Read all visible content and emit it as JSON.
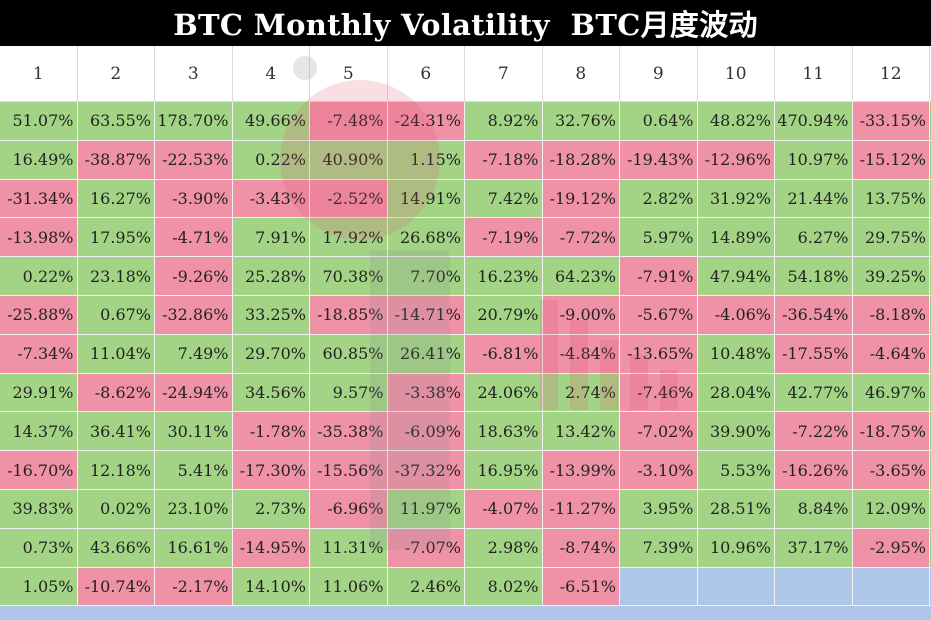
{
  "title": "BTC Monthly Volatility  BTC月度波动",
  "colors": {
    "up": "#a3d486",
    "down": "#ef92a7",
    "empty": "#aec6e8",
    "header_bg": "#ffffff",
    "title_bg": "#000000"
  },
  "chart_data": {
    "type": "table",
    "title": "BTC Monthly Volatility  BTC月度波动",
    "columns": [
      "1",
      "2",
      "3",
      "4",
      "5",
      "6",
      "7",
      "8",
      "9",
      "10",
      "11",
      "12"
    ],
    "rows": [
      [
        "51.07%",
        "63.55%",
        "178.70%",
        "49.66%",
        "-7.48%",
        "-24.31%",
        "8.92%",
        "32.76%",
        "0.64%",
        "48.82%",
        "470.94%",
        "-33.15%"
      ],
      [
        "16.49%",
        "-38.87%",
        "-22.53%",
        "0.22%",
        "40.90%",
        "1.15%",
        "-7.18%",
        "-18.28%",
        "-19.43%",
        "-12.96%",
        "10.97%",
        "-15.12%"
      ],
      [
        "-31.34%",
        "16.27%",
        "-3.90%",
        "-3.43%",
        "-2.52%",
        "14.91%",
        "7.42%",
        "-19.12%",
        "2.82%",
        "31.92%",
        "21.44%",
        "13.75%"
      ],
      [
        "-13.98%",
        "17.95%",
        "-4.71%",
        "7.91%",
        "17.92%",
        "26.68%",
        "-7.19%",
        "-7.72%",
        "5.97%",
        "14.89%",
        "6.27%",
        "29.75%"
      ],
      [
        "0.22%",
        "23.18%",
        "-9.26%",
        "25.28%",
        "70.38%",
        "7.70%",
        "16.23%",
        "64.23%",
        "-7.91%",
        "47.94%",
        "54.18%",
        "39.25%"
      ],
      [
        "-25.88%",
        "0.67%",
        "-32.86%",
        "33.25%",
        "-18.85%",
        "-14.71%",
        "20.79%",
        "-9.00%",
        "-5.67%",
        "-4.06%",
        "-36.54%",
        "-8.18%"
      ],
      [
        "-7.34%",
        "11.04%",
        "7.49%",
        "29.70%",
        "60.85%",
        "26.41%",
        "-6.81%",
        "-4.84%",
        "-13.65%",
        "10.48%",
        "-17.55%",
        "-4.64%"
      ],
      [
        "29.91%",
        "-8.62%",
        "-24.94%",
        "34.56%",
        "9.57%",
        "-3.38%",
        "24.06%",
        "2.74%",
        "-7.46%",
        "28.04%",
        "42.77%",
        "46.97%"
      ],
      [
        "14.37%",
        "36.41%",
        "30.11%",
        "-1.78%",
        "-35.38%",
        "-6.09%",
        "18.63%",
        "13.42%",
        "-7.02%",
        "39.90%",
        "-7.22%",
        "-18.75%"
      ],
      [
        "-16.70%",
        "12.18%",
        "5.41%",
        "-17.30%",
        "-15.56%",
        "-37.32%",
        "16.95%",
        "-13.99%",
        "-3.10%",
        "5.53%",
        "-16.26%",
        "-3.65%"
      ],
      [
        "39.83%",
        "0.02%",
        "23.10%",
        "2.73%",
        "-6.96%",
        "11.97%",
        "-4.07%",
        "-11.27%",
        "3.95%",
        "28.51%",
        "8.84%",
        "12.09%"
      ],
      [
        "0.73%",
        "43.66%",
        "16.61%",
        "-14.95%",
        "11.31%",
        "-7.07%",
        "2.98%",
        "-8.74%",
        "7.39%",
        "10.96%",
        "37.17%",
        "-2.95%"
      ],
      [
        "1.05%",
        "-10.74%",
        "-2.17%",
        "14.10%",
        "11.06%",
        "2.46%",
        "8.02%",
        "-6.51%",
        "",
        "",
        "",
        ""
      ]
    ]
  }
}
